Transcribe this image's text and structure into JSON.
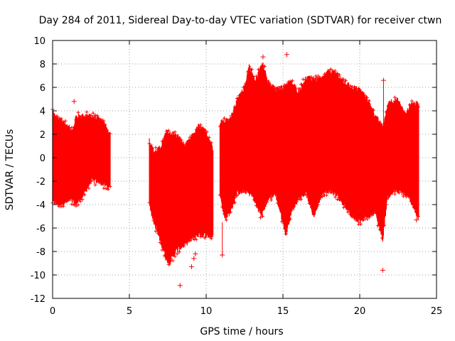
{
  "chart_data": {
    "type": "scatter",
    "title": "Day 284 of 2011, Sidereal Day-to-day VTEC variation (SDTVAR) for receiver ctwn",
    "xlabel": "GPS time / hours",
    "ylabel": "SDTVAR / TECUs",
    "xlim": [
      0,
      25
    ],
    "ylim": [
      -12,
      10
    ],
    "x_ticks": [
      0,
      5,
      10,
      15,
      20,
      25
    ],
    "y_ticks": [
      -12,
      -10,
      -8,
      -6,
      -4,
      -2,
      0,
      2,
      4,
      6,
      8,
      10
    ],
    "grid": true,
    "color": "#ff0000",
    "marker": "+",
    "segments": [
      {
        "name": "segment-1",
        "x_start": 0.0,
        "x_end": 3.75,
        "upper": [
          [
            0.0,
            4.0
          ],
          [
            0.2,
            3.4
          ],
          [
            0.6,
            3.2
          ],
          [
            1.0,
            2.6
          ],
          [
            1.35,
            2.4
          ],
          [
            1.5,
            3.5
          ],
          [
            2.2,
            3.6
          ],
          [
            3.2,
            3.3
          ],
          [
            3.5,
            2.6
          ],
          [
            3.75,
            1.8
          ]
        ],
        "lower": [
          [
            0.0,
            -3.8
          ],
          [
            0.4,
            -4.0
          ],
          [
            0.8,
            -3.8
          ],
          [
            1.2,
            -3.6
          ],
          [
            1.5,
            -4.0
          ],
          [
            2.0,
            -3.2
          ],
          [
            2.5,
            -2.0
          ],
          [
            3.0,
            -2.0
          ],
          [
            3.5,
            -2.4
          ],
          [
            3.75,
            -2.6
          ]
        ]
      },
      {
        "name": "segment-2",
        "x_start": 6.3,
        "x_end": 10.45,
        "upper": [
          [
            6.3,
            1.5
          ],
          [
            6.6,
            0.5
          ],
          [
            7.0,
            0.8
          ],
          [
            7.4,
            2.2
          ],
          [
            7.8,
            2.0
          ],
          [
            8.2,
            1.8
          ],
          [
            8.6,
            1.0
          ],
          [
            9.0,
            1.6
          ],
          [
            9.5,
            2.7
          ],
          [
            10.0,
            2.2
          ],
          [
            10.45,
            0.8
          ]
        ],
        "lower": [
          [
            6.3,
            -4.0
          ],
          [
            6.6,
            -5.5
          ],
          [
            7.0,
            -7.0
          ],
          [
            7.4,
            -8.6
          ],
          [
            7.6,
            -9.0
          ],
          [
            8.0,
            -8.0
          ],
          [
            8.4,
            -7.6
          ],
          [
            8.8,
            -7.2
          ],
          [
            9.2,
            -6.8
          ],
          [
            9.6,
            -6.5
          ],
          [
            10.0,
            -6.6
          ],
          [
            10.45,
            -6.8
          ]
        ]
      },
      {
        "name": "segment-3",
        "x_start": 10.9,
        "x_end": 23.85,
        "upper": [
          [
            10.9,
            3.0
          ],
          [
            11.5,
            3.2
          ],
          [
            12.0,
            4.8
          ],
          [
            12.5,
            6.0
          ],
          [
            12.8,
            7.9
          ],
          [
            13.2,
            6.5
          ],
          [
            13.7,
            8.2
          ],
          [
            14.0,
            6.5
          ],
          [
            14.5,
            5.8
          ],
          [
            15.0,
            6.0
          ],
          [
            15.5,
            6.5
          ],
          [
            16.0,
            5.6
          ],
          [
            16.5,
            6.8
          ],
          [
            17.0,
            6.7
          ],
          [
            17.5,
            6.7
          ],
          [
            18.0,
            7.4
          ],
          [
            18.5,
            7.2
          ],
          [
            19.0,
            6.4
          ],
          [
            19.5,
            6.0
          ],
          [
            20.0,
            5.8
          ],
          [
            20.5,
            5.0
          ],
          [
            21.0,
            3.6
          ],
          [
            21.5,
            2.6
          ],
          [
            21.9,
            4.8
          ],
          [
            22.5,
            4.9
          ],
          [
            23.0,
            3.6
          ],
          [
            23.3,
            4.6
          ],
          [
            23.85,
            4.6
          ]
        ],
        "lower": [
          [
            10.9,
            -3.0
          ],
          [
            11.2,
            -5.2
          ],
          [
            11.6,
            -4.6
          ],
          [
            12.0,
            -3.0
          ],
          [
            12.5,
            -2.8
          ],
          [
            13.0,
            -3.2
          ],
          [
            13.6,
            -5.0
          ],
          [
            14.0,
            -3.6
          ],
          [
            14.5,
            -3.0
          ],
          [
            14.9,
            -5.0
          ],
          [
            15.2,
            -6.6
          ],
          [
            15.5,
            -4.8
          ],
          [
            16.0,
            -3.5
          ],
          [
            16.5,
            -3.0
          ],
          [
            17.0,
            -5.0
          ],
          [
            17.5,
            -3.2
          ],
          [
            18.0,
            -2.8
          ],
          [
            18.5,
            -3.2
          ],
          [
            19.0,
            -4.0
          ],
          [
            19.5,
            -5.0
          ],
          [
            20.0,
            -5.4
          ],
          [
            20.5,
            -5.0
          ],
          [
            21.0,
            -4.6
          ],
          [
            21.5,
            -7.0
          ],
          [
            21.8,
            -3.4
          ],
          [
            22.3,
            -2.8
          ],
          [
            22.8,
            -3.0
          ],
          [
            23.3,
            -3.6
          ],
          [
            23.85,
            -5.3
          ]
        ]
      }
    ],
    "outliers": [
      [
        8.3,
        -10.9
      ],
      [
        9.05,
        -9.3
      ],
      [
        9.2,
        -8.6
      ],
      [
        9.3,
        -8.2
      ],
      [
        15.25,
        8.8
      ],
      [
        13.7,
        8.6
      ],
      [
        21.55,
        6.6
      ],
      [
        21.5,
        -9.6
      ],
      [
        1.4,
        4.8
      ],
      [
        23.7,
        -5.3
      ],
      [
        11.05,
        -8.3
      ]
    ]
  }
}
